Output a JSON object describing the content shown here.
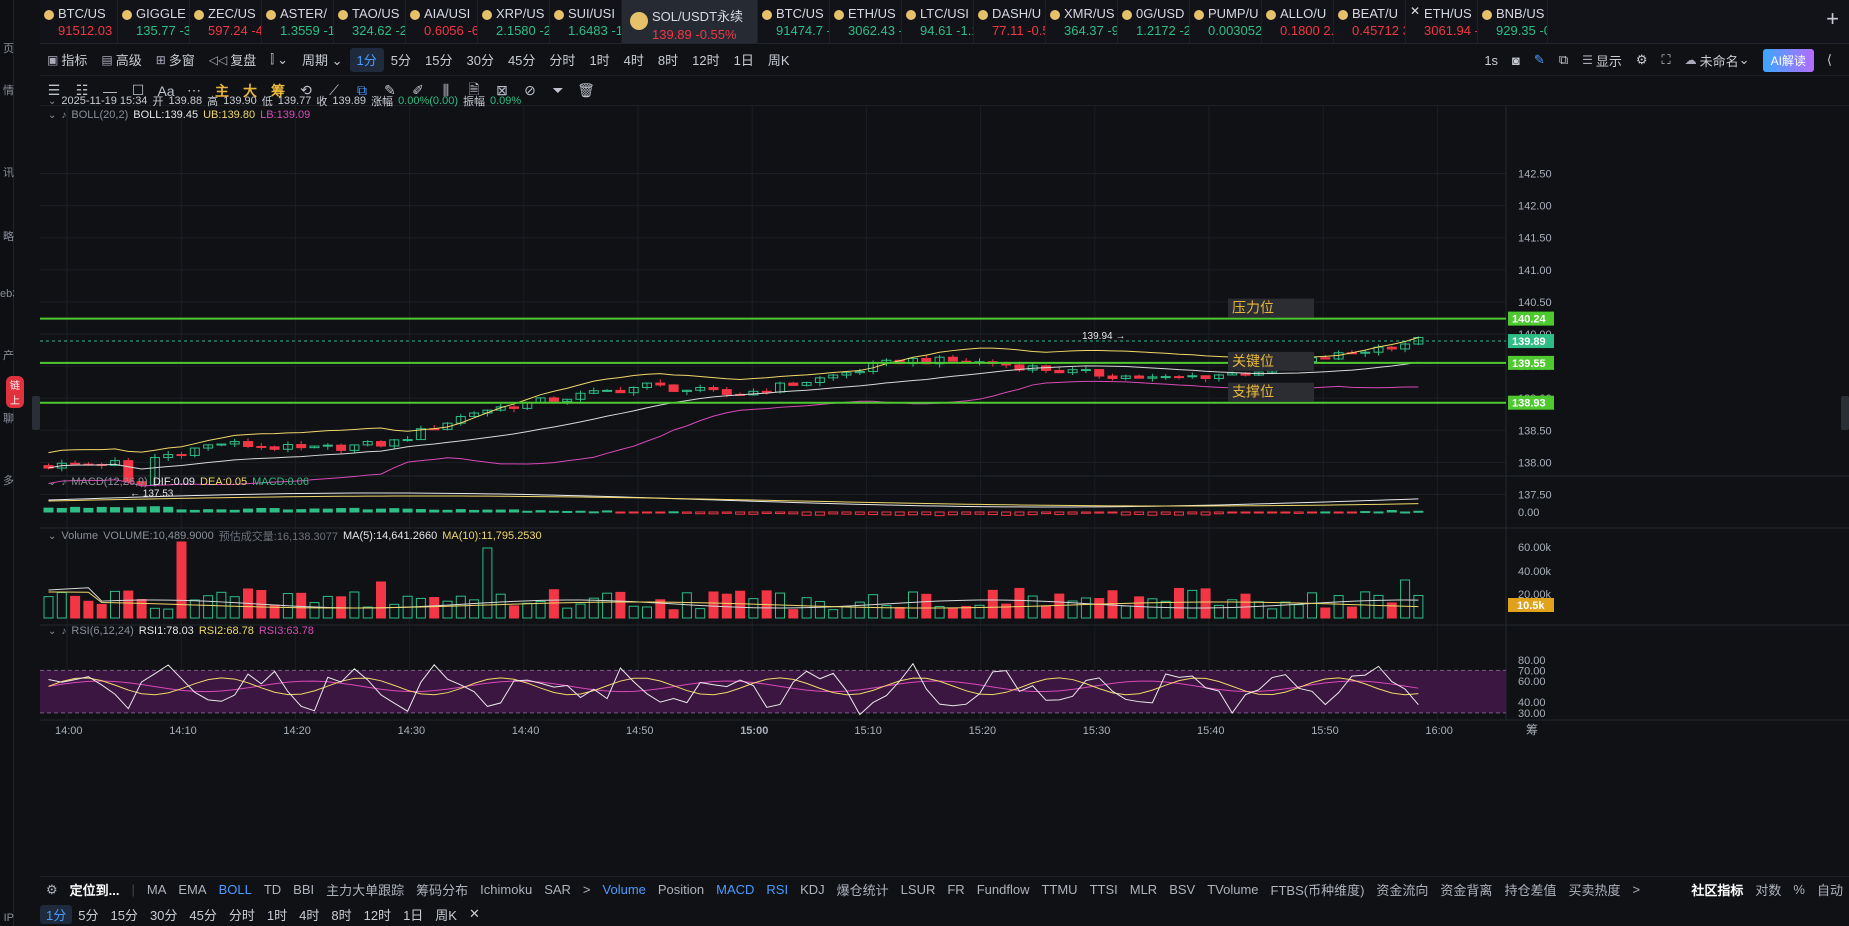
{
  "leftbar": {
    "items": [
      "页",
      "情",
      "讯",
      "略",
      "eb3",
      "产",
      "聊",
      "多",
      "IP"
    ],
    "badge": "链上"
  },
  "tickers": [
    {
      "name": "BTC/US",
      "price": "91512.03",
      "color": "#f23645",
      "w": 78
    },
    {
      "name": "GIGGLE",
      "price": "135.77 -3.",
      "color": "#2ebd85",
      "w": 72
    },
    {
      "name": "ZEC/US",
      "price": "597.24 -4.",
      "color": "#f23645",
      "w": 72
    },
    {
      "name": "ASTER/",
      "price": "1.3559 -1.",
      "color": "#2ebd85",
      "w": 72
    },
    {
      "name": "TAO/US",
      "price": "324.62 -2.",
      "color": "#2ebd85",
      "w": 72
    },
    {
      "name": "AIA/USI",
      "price": "0.6056 -6.",
      "color": "#f23645",
      "w": 72
    },
    {
      "name": "XRP/US",
      "price": "2.1580 -2.",
      "color": "#2ebd85",
      "w": 72
    },
    {
      "name": "SUI/USI",
      "price": "1.6483 -1.",
      "color": "#2ebd85",
      "w": 72
    },
    {
      "name": "SOL/USDT永续",
      "price": "139.89 -0.55%",
      "color": "#f23645",
      "w": 136,
      "active": true
    },
    {
      "name": "BTC/US",
      "price": "91474.7 -",
      "color": "#2ebd85",
      "w": 72
    },
    {
      "name": "ETH/US",
      "price": "3062.43 -",
      "color": "#2ebd85",
      "w": 72
    },
    {
      "name": "LTC/USI",
      "price": "94.61 -1.1",
      "color": "#2ebd85",
      "w": 72
    },
    {
      "name": "DASH/U",
      "price": "77.11 -0.5",
      "color": "#f23645",
      "w": 72
    },
    {
      "name": "XMR/US",
      "price": "364.37 -9.",
      "color": "#2ebd85",
      "w": 72
    },
    {
      "name": "0G/USD",
      "price": "1.2172 -2.",
      "color": "#2ebd85",
      "w": 72
    },
    {
      "name": "PUMP/U",
      "price": "0.003052",
      "color": "#2ebd85",
      "w": 72
    },
    {
      "name": "ALLO/U",
      "price": "0.1800 2.5",
      "color": "#f23645",
      "w": 72
    },
    {
      "name": "BEAT/U",
      "price": "0.45712 3",
      "color": "#f23645",
      "w": 72
    },
    {
      "name": "ETH/US",
      "price": "3061.94 -",
      "color": "#f23645",
      "w": 72,
      "x": true
    },
    {
      "name": "BNB/US",
      "price": "929.35 -0.",
      "color": "#2ebd85",
      "w": 70
    }
  ],
  "add_tab": "+",
  "toolbar1": {
    "items": [
      {
        "icon": "▣",
        "label": "指标"
      },
      {
        "icon": "▤",
        "label": "高级"
      },
      {
        "icon": "⊞",
        "label": "多窗"
      },
      {
        "icon": "◁◁",
        "label": "复盘"
      },
      {
        "icon": "⫿",
        "label": "⌄"
      },
      {
        "icon": "",
        "label": "周期 ⌄"
      }
    ],
    "intervals": [
      "1分",
      "5分",
      "15分",
      "30分",
      "45分",
      "分时",
      "1时",
      "4时",
      "8时",
      "12时",
      "1日",
      "周K"
    ],
    "selected_interval": "1分",
    "right": {
      "interval": "1s",
      "display": "显示",
      "layout": "未命名",
      "ai": "AI解读"
    }
  },
  "toolbar2": {
    "items": [
      "☰",
      "☷",
      "—",
      "☐",
      "Aa",
      "⋯",
      "主",
      "大",
      "筹",
      "⟲",
      "⟋",
      "⧉",
      "✎",
      "✐",
      "⫼",
      "🗎",
      "⊠",
      "⊘",
      "⏷",
      "🗑"
    ]
  },
  "chart": {
    "ohlc": {
      "datetime": "2025-11-19 15:34",
      "open_label": "开",
      "open": "139.88",
      "high_label": "高",
      "high": "139.90",
      "low_label": "低",
      "low": "139.77",
      "close_label": "收",
      "close": "139.89",
      "chg_label": "涨幅",
      "chg": "0.00%(0.00)",
      "amp_label": "振幅",
      "amp": "0.09%"
    },
    "boll": {
      "name": "BOLL(20,2)",
      "mid": "BOLL:139.45",
      "ub": "UB:139.80",
      "lb": "LB:139.09"
    },
    "levels": [
      {
        "label": "压力位",
        "price": 140.24,
        "tag": "140.24"
      },
      {
        "label": "关键位",
        "price": 139.55,
        "tag": "139.55"
      },
      {
        "label": "支撑位",
        "price": 138.93,
        "tag": "138.93"
      }
    ],
    "last_price": {
      "value": 139.89,
      "tag": "139.89",
      "marker": "139.94 →"
    },
    "low_marker": "← 137.53",
    "price_axis": [
      "142.50",
      "142.00",
      "141.50",
      "141.00",
      "140.50",
      "140.00",
      "139.50",
      "139.00",
      "138.50",
      "138.00",
      "137.50"
    ],
    "macd": {
      "name": "MACD(12,26,9)",
      "dif": "DIF:0.09",
      "dea": "DEA:0.05",
      "macd": "MACD:0.06",
      "axis": "0.00"
    },
    "volume": {
      "name": "Volume",
      "vol": "VOLUME:10,489.9000",
      "est": "预估成交量:16,138.3077",
      "ma5": "MA(5):14,641.2660",
      "ma10": "MA(10):11,795.2530",
      "axis": [
        "60.00k",
        "40.00k",
        "20.00k"
      ],
      "tag": "10.5k"
    },
    "rsi": {
      "name": "RSI(6,12,24)",
      "rsi1": "RSI1:78.03",
      "rsi2": "RSI2:68.78",
      "rsi3": "RSI3:63.78",
      "axis": [
        "80.00",
        "70.00",
        "60.00",
        "40.00",
        "30.00"
      ]
    },
    "time_axis": [
      "14:00",
      "14:10",
      "14:20",
      "14:30",
      "14:40",
      "14:50",
      "15:00",
      "15:10",
      "15:20",
      "15:30",
      "15:40",
      "15:50",
      "16:00"
    ],
    "time_bold": "15:00",
    "corner": "筹",
    "colors": {
      "up": "#2ebd85",
      "down": "#f23645",
      "level": "#4ec92f",
      "ub": "#f0d86a",
      "lb": "#d94ab8",
      "mid": "#d8d8d8",
      "dif": "#e9e9e9",
      "dea": "#f0d86a",
      "rsi_bg": "#3a1640"
    }
  },
  "bottom1": {
    "lead": "定位到...",
    "items": [
      "MA",
      "EMA",
      "BOLL",
      "TD",
      "BBI",
      "主力大单跟踪",
      "筹码分布",
      "Ichimoku",
      "SAR",
      ">",
      "Volume",
      "Position",
      "MACD",
      "RSI",
      "KDJ",
      "爆仓统计",
      "LSUR",
      "FR",
      "Fundflow",
      "TTMU",
      "TTSI",
      "MLR",
      "BSV",
      "TVolume",
      "FTBS(币种维度)",
      "资金流向",
      "资金背离",
      "持仓差值",
      "买卖热度",
      ">"
    ],
    "on": [
      "BOLL",
      "Volume",
      "MACD",
      "RSI"
    ],
    "right": [
      "社区指标",
      "对数",
      "%",
      "自动"
    ]
  },
  "bottom2": {
    "items": [
      "1分",
      "5分",
      "15分",
      "30分",
      "45分",
      "分时",
      "1时",
      "4时",
      "8时",
      "12时",
      "1日",
      "周K",
      "✕"
    ],
    "selected": "1分"
  }
}
